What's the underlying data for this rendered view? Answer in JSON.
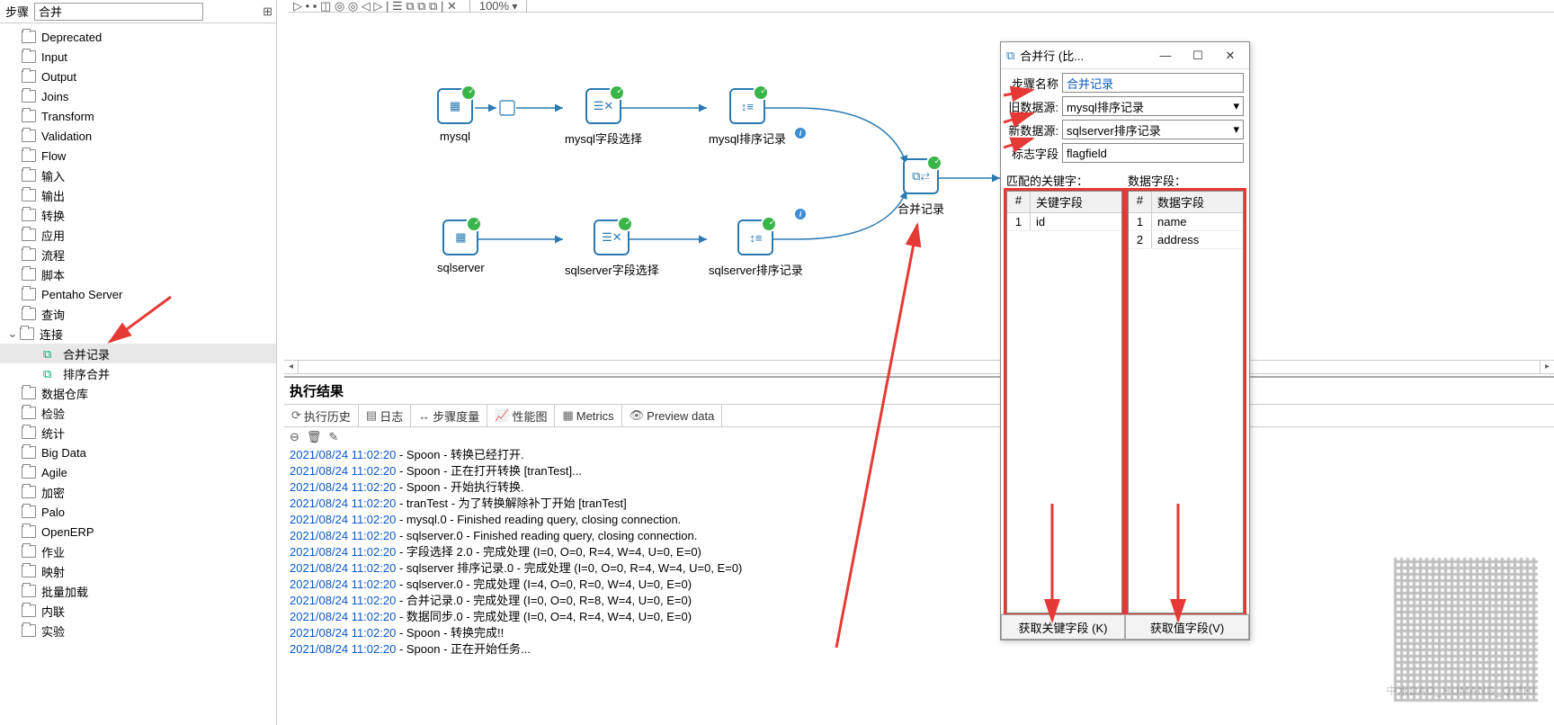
{
  "toolbar": {
    "zoom": "100%"
  },
  "sidebar": {
    "label": "步骤",
    "search": "合并",
    "items": [
      "Deprecated",
      "Input",
      "Output",
      "Joins",
      "Transform",
      "Validation",
      "Flow",
      "输入",
      "输出",
      "转换",
      "应用",
      "流程",
      "脚本",
      "Pentaho Server",
      "查询",
      "连接"
    ],
    "conn_children": [
      "合并记录",
      "排序合并"
    ],
    "items2": [
      "数据仓库",
      "检验",
      "统计",
      "Big Data",
      "Agile",
      "加密",
      "Palo",
      "OpenERP",
      "作业",
      "映射",
      "批量加载",
      "内联",
      "实验"
    ]
  },
  "nodes": {
    "mysql": "mysql",
    "mysql_sel": "mysql字段选择",
    "mysql_sort": "mysql排序记录",
    "sqlserver": "sqlserver",
    "sqlserver_sel": "sqlserver字段选择",
    "sqlserver_sort": "sqlserver排序记录",
    "merge": "合并记录"
  },
  "results": {
    "title": "执行结果",
    "tabs": [
      "执行历史",
      "日志",
      "步骤度量",
      "性能图",
      "Metrics",
      "Preview data"
    ],
    "log": [
      {
        "ts": "2021/08/24 11:02:20",
        "msg": " - Spoon - 转换已经打开."
      },
      {
        "ts": "2021/08/24 11:02:20",
        "msg": " - Spoon - 正在打开转换 [tranTest]..."
      },
      {
        "ts": "2021/08/24 11:02:20",
        "msg": " - Spoon - 开始执行转换."
      },
      {
        "ts": "2021/08/24 11:02:20",
        "msg": " - tranTest - 为了转换解除补丁开始  [tranTest]"
      },
      {
        "ts": "2021/08/24 11:02:20",
        "msg": " - mysql.0 - Finished reading query, closing connection."
      },
      {
        "ts": "2021/08/24 11:02:20",
        "msg": " - sqlserver.0 - Finished reading query, closing connection."
      },
      {
        "ts": "2021/08/24 11:02:20",
        "msg": " - 字段选择 2.0 - 完成处理 (I=0, O=0, R=4, W=4, U=0, E=0)"
      },
      {
        "ts": "2021/08/24 11:02:20",
        "msg": " - sqlserver 排序记录.0 - 完成处理 (I=0, O=0, R=4, W=4, U=0, E=0)"
      },
      {
        "ts": "2021/08/24 11:02:20",
        "msg": " - sqlserver.0 - 完成处理 (I=4, O=0, R=0, W=4, U=0, E=0)"
      },
      {
        "ts": "2021/08/24 11:02:20",
        "msg": " - 合并记录.0 - 完成处理 (I=0, O=0, R=8, W=4, U=0, E=0)"
      },
      {
        "ts": "2021/08/24 11:02:20",
        "msg": " - 数据同步.0 - 完成处理 (I=0, O=4, R=4, W=4, U=0, E=0)"
      },
      {
        "ts": "2021/08/24 11:02:20",
        "msg": " - Spoon - 转换完成!!"
      },
      {
        "ts": "2021/08/24 11:02:20",
        "msg": " - Spoon - 正在开始任务..."
      }
    ]
  },
  "dialog": {
    "title": "合并行 (比...",
    "fields": {
      "step_name_label": "步骤名称",
      "step_name": "合并记录",
      "old_src_label": "旧数据源:",
      "old_src": "mysql排序记录",
      "new_src_label": "新数据源:",
      "new_src": "sqlserver排序记录",
      "flag_label": "标志字段",
      "flag": "flagfield"
    },
    "key_title": "匹配的关键字：",
    "key_head": "关键字段",
    "key_rows": [
      "id"
    ],
    "data_title": "数据字段：",
    "data_head": "数据字段",
    "data_rows": [
      "name",
      "address"
    ],
    "btn_key": "获取关键字段 (K)",
    "btn_val": "获取值字段(V)"
  }
}
